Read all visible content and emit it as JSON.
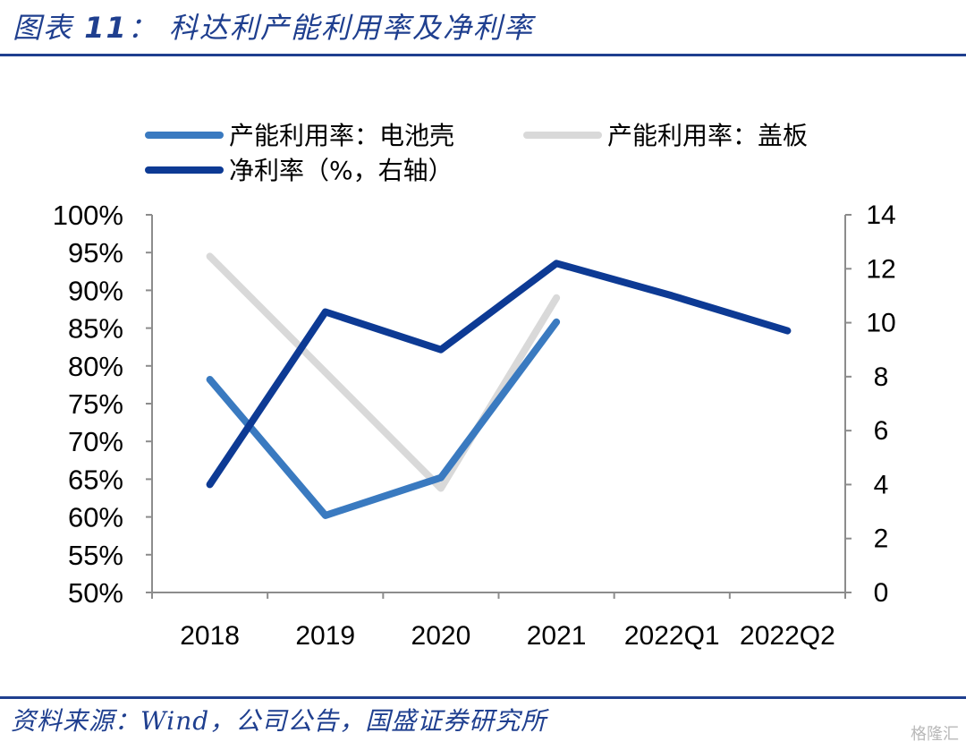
{
  "header": {
    "title_prefix": "图表",
    "title_number": "11",
    "title_text": "： 科达利产能利用率及净利率"
  },
  "footer": {
    "source": "资料来源：Wind，公司公告，国盛证券研究所",
    "watermark": "格隆汇"
  },
  "chart_data": {
    "type": "line",
    "categories": [
      "2018",
      "2019",
      "2020",
      "2021",
      "2022Q1",
      "2022Q2"
    ],
    "y_left": {
      "ticks": [
        "100%",
        "95%",
        "90%",
        "85%",
        "80%",
        "75%",
        "70%",
        "65%",
        "60%",
        "55%",
        "50%"
      ],
      "ylim": [
        50,
        100
      ]
    },
    "y_right": {
      "ticks": [
        "14",
        "12",
        "10",
        "8",
        "6",
        "4",
        "2",
        "0"
      ],
      "ylim": [
        0,
        14
      ]
    },
    "series": [
      {
        "name": "产能利用率：电池壳",
        "axis": "left",
        "color": "#3a7ac0",
        "values": [
          78.2,
          60.2,
          65.2,
          85.8,
          null,
          null
        ]
      },
      {
        "name": "产能利用率：盖板",
        "axis": "left",
        "color": "#d9d9d9",
        "values": [
          94.5,
          null,
          63.8,
          89.0,
          null,
          null
        ]
      },
      {
        "name": "净利率（%，右轴）",
        "axis": "right",
        "color": "#0d3a94",
        "values": [
          4.0,
          10.4,
          9.0,
          12.2,
          11.0,
          9.7
        ]
      }
    ],
    "legend_placement": "top",
    "grid": false
  }
}
